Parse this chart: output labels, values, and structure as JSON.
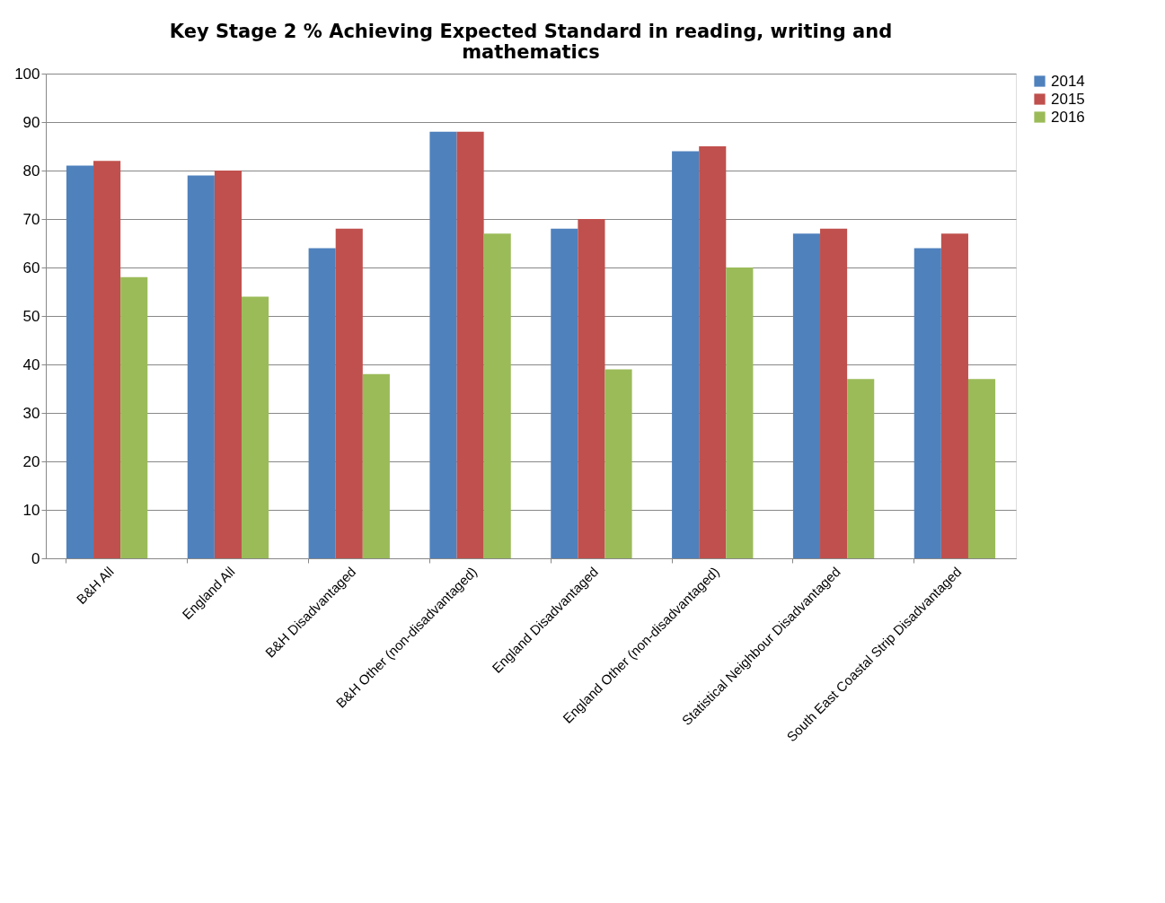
{
  "chart_data": {
    "type": "bar",
    "title": "Key Stage 2 % Achieving Expected Standard in reading, writing and mathematics",
    "categories": [
      "B&H All",
      "England All",
      "B&H Disadvantaged",
      "B&H Other (non-disadvantaged)",
      "England Disadvantaged",
      "England Other (non-disadvantaged)",
      "Statistical Neighbour Disadvantaged",
      "South East Coastal Strip Disadvantaged"
    ],
    "series": [
      {
        "name": "2014",
        "color": "#4f81bd",
        "values": [
          81,
          79,
          64,
          88,
          68,
          84,
          67,
          64
        ]
      },
      {
        "name": "2015",
        "color": "#c0504d",
        "values": [
          82,
          80,
          68,
          88,
          70,
          85,
          68,
          67
        ]
      },
      {
        "name": "2016",
        "color": "#9bbb59",
        "values": [
          58,
          54,
          38,
          67,
          39,
          60,
          37,
          37
        ]
      }
    ],
    "ylim": [
      0,
      100
    ],
    "yticks": [
      0,
      10,
      20,
      30,
      40,
      50,
      60,
      70,
      80,
      90,
      100
    ],
    "grid": "y",
    "legend": "right"
  }
}
